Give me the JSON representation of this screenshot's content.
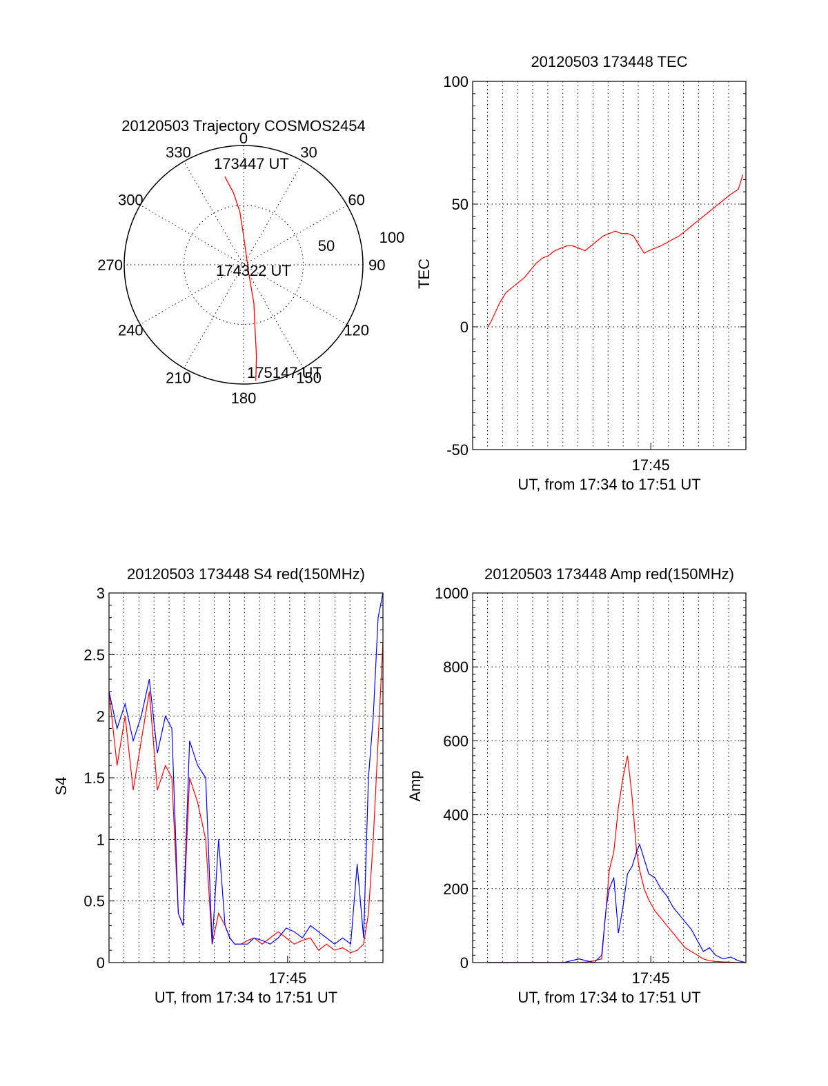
{
  "colors": {
    "red": "#ff0000",
    "blue": "#0000ff",
    "black": "#000000"
  },
  "chart_data": [
    {
      "type": "polar",
      "title": "20120503 Trajectory COSMOS2454",
      "azimuth_labels": [
        "0",
        "30",
        "60",
        "90",
        "120",
        "150",
        "180",
        "210",
        "240",
        "270",
        "300",
        "330"
      ],
      "radial_labels": [
        "50",
        "100"
      ],
      "annotations": [
        "173447 UT",
        "174322 UT",
        "175147 UT"
      ],
      "series": [
        {
          "color": "red",
          "points": [
            [
              348,
              68
            ],
            [
              352,
              55
            ],
            [
              356,
              40
            ],
            [
              0,
              22
            ],
            [
              150,
              8
            ],
            [
              165,
              30
            ],
            [
              170,
              50
            ],
            [
              172,
              70
            ],
            [
              174,
              88
            ]
          ]
        }
      ]
    },
    {
      "type": "line",
      "title": "20120503 173448 TEC",
      "xlabel": "UT, from 17:34 to 17:51 UT",
      "ylabel": "TEC",
      "x_tick_labels": [
        "17:45"
      ],
      "y_tick_labels": [
        "100",
        "50",
        "0",
        "-50"
      ],
      "ylim": [
        -50,
        100
      ],
      "grid": true,
      "series": [
        {
          "color": "red",
          "x": [
            0.0,
            0.2,
            0.5,
            0.8,
            1.2,
            1.6,
            2.0,
            2.4,
            2.8,
            3.2,
            3.6,
            4.0,
            4.4,
            4.8,
            5.2,
            5.6,
            6.0,
            6.4,
            6.8,
            7.2,
            7.6,
            8.0,
            8.4,
            8.8,
            9.2,
            9.6,
            10.0,
            10.3,
            10.6,
            11.0,
            11.4,
            12.0,
            12.6,
            13.2,
            13.8,
            14.4,
            15.0,
            15.6,
            16.0,
            16.5,
            16.8
          ],
          "y": [
            0,
            2,
            6,
            10,
            14,
            16,
            18,
            20,
            23,
            26,
            28,
            29,
            31,
            32,
            33,
            33,
            32,
            31,
            33,
            35,
            37,
            38,
            39,
            38,
            38,
            37,
            33,
            30,
            31,
            32,
            33,
            35,
            37,
            40,
            43,
            46,
            49,
            52,
            54,
            56,
            62
          ]
        }
      ]
    },
    {
      "type": "line",
      "title": "20120503 173448 S4 red(150MHz)",
      "xlabel": "UT, from 17:34 to 17:51 UT",
      "ylabel": "S4",
      "x_tick_labels": [
        "17:45"
      ],
      "y_tick_labels": [
        "3",
        "2.5",
        "2",
        "1.5",
        "1",
        "0.5",
        "0"
      ],
      "ylim": [
        0,
        3
      ],
      "grid": true,
      "series": [
        {
          "color": "red",
          "x": [
            0.0,
            0.5,
            1.0,
            1.5,
            2.0,
            2.5,
            3.0,
            3.5,
            3.9,
            4.3,
            4.6,
            5.0,
            5.5,
            6.0,
            6.4,
            6.8,
            7.2,
            7.5,
            7.8,
            8.2,
            8.6,
            9.0,
            9.5,
            10.0,
            10.5,
            11.0,
            11.5,
            12.0,
            12.5,
            13.0,
            13.5,
            14.0,
            14.5,
            15.0,
            15.4,
            15.8,
            16.1,
            16.4,
            16.7,
            17.0
          ],
          "y": [
            2.2,
            1.6,
            2.0,
            1.4,
            1.8,
            2.2,
            1.4,
            1.6,
            1.5,
            0.4,
            0.3,
            1.5,
            1.3,
            1.0,
            0.15,
            0.4,
            0.3,
            0.2,
            0.15,
            0.15,
            0.18,
            0.2,
            0.15,
            0.2,
            0.25,
            0.2,
            0.15,
            0.18,
            0.2,
            0.1,
            0.15,
            0.1,
            0.12,
            0.08,
            0.1,
            0.15,
            0.4,
            1.0,
            1.8,
            2.6
          ]
        },
        {
          "color": "blue",
          "x": [
            0.0,
            0.5,
            1.0,
            1.5,
            2.0,
            2.5,
            3.0,
            3.5,
            3.9,
            4.3,
            4.6,
            5.0,
            5.5,
            6.0,
            6.4,
            6.8,
            7.2,
            7.5,
            7.8,
            8.2,
            8.6,
            9.0,
            9.5,
            10.0,
            10.5,
            11.0,
            11.5,
            12.0,
            12.5,
            13.0,
            13.5,
            14.0,
            14.5,
            15.0,
            15.4,
            15.8,
            16.1,
            16.4,
            16.7,
            17.0
          ],
          "y": [
            2.2,
            1.9,
            2.1,
            1.8,
            2.0,
            2.3,
            1.7,
            2.0,
            1.9,
            0.4,
            0.3,
            1.8,
            1.6,
            1.5,
            0.15,
            1.0,
            0.3,
            0.2,
            0.15,
            0.15,
            0.15,
            0.2,
            0.18,
            0.15,
            0.2,
            0.28,
            0.25,
            0.2,
            0.3,
            0.25,
            0.2,
            0.15,
            0.2,
            0.15,
            0.8,
            0.2,
            1.5,
            2.0,
            2.8,
            3.0
          ]
        }
      ]
    },
    {
      "type": "line",
      "title": "20120503 173448 Amp red(150MHz)",
      "xlabel": "UT, from 17:34 to 17:51 UT",
      "ylabel": "Amp",
      "x_tick_labels": [
        "17:45"
      ],
      "y_tick_labels": [
        "1000",
        "800",
        "600",
        "400",
        "200",
        "0"
      ],
      "ylim": [
        0,
        1000
      ],
      "grid": true,
      "series": [
        {
          "color": "red",
          "x": [
            0.0,
            1.0,
            2.0,
            3.0,
            4.0,
            5.0,
            6.0,
            6.5,
            7.0,
            7.5,
            7.8,
            8.0,
            8.3,
            8.6,
            8.9,
            9.2,
            9.5,
            9.8,
            10.0,
            10.3,
            10.6,
            11.0,
            11.4,
            11.8,
            12.2,
            12.6,
            13.0,
            13.4,
            13.8,
            14.2,
            14.6,
            15.0,
            15.5,
            16.0,
            16.5,
            17.0
          ],
          "y": [
            0,
            0,
            0,
            0,
            0,
            0,
            0,
            2,
            5,
            10,
            150,
            250,
            300,
            420,
            500,
            560,
            450,
            300,
            250,
            200,
            170,
            140,
            120,
            100,
            80,
            60,
            40,
            30,
            20,
            10,
            5,
            3,
            2,
            1,
            0,
            0
          ]
        },
        {
          "color": "blue",
          "x": [
            0.0,
            1.0,
            2.0,
            3.0,
            4.0,
            5.0,
            6.0,
            6.5,
            7.0,
            7.5,
            7.8,
            8.0,
            8.3,
            8.6,
            8.9,
            9.2,
            9.5,
            9.8,
            10.0,
            10.3,
            10.6,
            11.0,
            11.4,
            11.8,
            12.2,
            12.6,
            13.0,
            13.4,
            13.8,
            14.2,
            14.6,
            15.0,
            15.5,
            16.0,
            16.5,
            17.0
          ],
          "y": [
            0,
            0,
            0,
            0,
            0,
            0,
            10,
            5,
            0,
            20,
            150,
            200,
            230,
            80,
            150,
            240,
            260,
            300,
            320,
            280,
            240,
            230,
            200,
            180,
            150,
            130,
            110,
            90,
            60,
            30,
            40,
            20,
            10,
            15,
            5,
            0
          ]
        }
      ]
    }
  ]
}
